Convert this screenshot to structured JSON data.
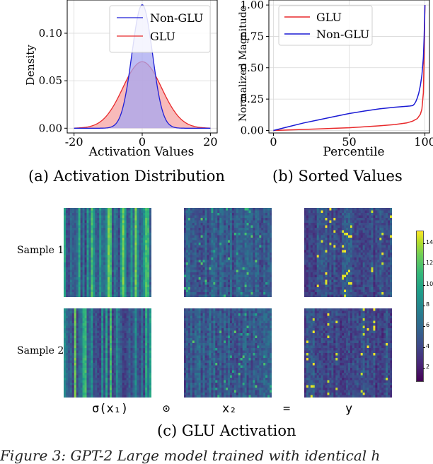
{
  "panel_a": {
    "caption": "(a)  Activation Distribution",
    "chart_data": {
      "type": "area",
      "title": "",
      "xlabel": "Activation Values",
      "ylabel": "Density",
      "xlim": [
        -22,
        22
      ],
      "ylim": [
        -0.005,
        0.135
      ],
      "x_ticks": [
        "-20",
        "0",
        "20"
      ],
      "y_ticks": [
        "0.00",
        "0.05",
        "0.10"
      ],
      "legend_position": "top-right",
      "series": [
        {
          "name": "Non-GLU",
          "color": "#1f1fd6",
          "fill": "#a7a7f0",
          "distribution": "gaussian",
          "mean": 0,
          "std": 3.0,
          "peak": 0.13
        },
        {
          "name": "GLU",
          "color": "#e8292b",
          "fill": "#f6a3a3",
          "distribution": "gaussian",
          "mean": 0,
          "std": 5.7,
          "peak": 0.07
        }
      ]
    }
  },
  "panel_b": {
    "caption": "(b)  Sorted Values",
    "chart_data": {
      "type": "line",
      "title": "",
      "xlabel": "Percentile",
      "ylabel": "Normalized Magnitude",
      "xlim": [
        -3,
        103
      ],
      "ylim": [
        -0.02,
        1.04
      ],
      "x_ticks": [
        "0",
        "50",
        "100"
      ],
      "y_ticks": [
        "0.00",
        "0.25",
        "0.50",
        "0.75",
        "1.00"
      ],
      "grid": true,
      "legend_position": "top-left",
      "series": [
        {
          "name": "GLU",
          "color": "#e8292b",
          "x": [
            0,
            10,
            20,
            30,
            40,
            50,
            60,
            70,
            80,
            88,
            92,
            95,
            97,
            98,
            99,
            99.5,
            100
          ],
          "y": [
            0.0,
            0.004,
            0.008,
            0.012,
            0.017,
            0.022,
            0.029,
            0.037,
            0.047,
            0.06,
            0.075,
            0.095,
            0.13,
            0.17,
            0.3,
            0.6,
            1.0
          ]
        },
        {
          "name": "Non-GLU",
          "color": "#1a1ad4",
          "x": [
            0,
            10,
            20,
            30,
            40,
            50,
            60,
            70,
            80,
            88,
            90,
            92,
            93,
            94,
            95,
            96,
            97,
            98,
            99,
            99.5,
            100
          ],
          "y": [
            0.0,
            0.03,
            0.06,
            0.085,
            0.11,
            0.135,
            0.155,
            0.172,
            0.185,
            0.193,
            0.195,
            0.198,
            0.21,
            0.23,
            0.26,
            0.3,
            0.36,
            0.44,
            0.58,
            0.75,
            1.0
          ]
        }
      ]
    }
  },
  "panel_c": {
    "caption": "(c)  GLU Activation",
    "rows": [
      "Sample 1",
      "Sample 2"
    ],
    "columns": [
      {
        "label": "σ(x₁)",
        "style": "wide-stripes"
      },
      {
        "label": "x₂",
        "style": "fine-noise"
      },
      {
        "label": "y",
        "style": "sparse-bright"
      }
    ],
    "operators": [
      "⊙",
      "="
    ],
    "colorbar": {
      "colormap": "viridis",
      "ticks": [
        "2",
        "4",
        "6",
        "8",
        "10",
        "12",
        "14"
      ],
      "min": 0.8,
      "max": 15.2
    }
  },
  "figure_caption_partial": "Figure 3: GPT-2 Large model trained with identical h"
}
